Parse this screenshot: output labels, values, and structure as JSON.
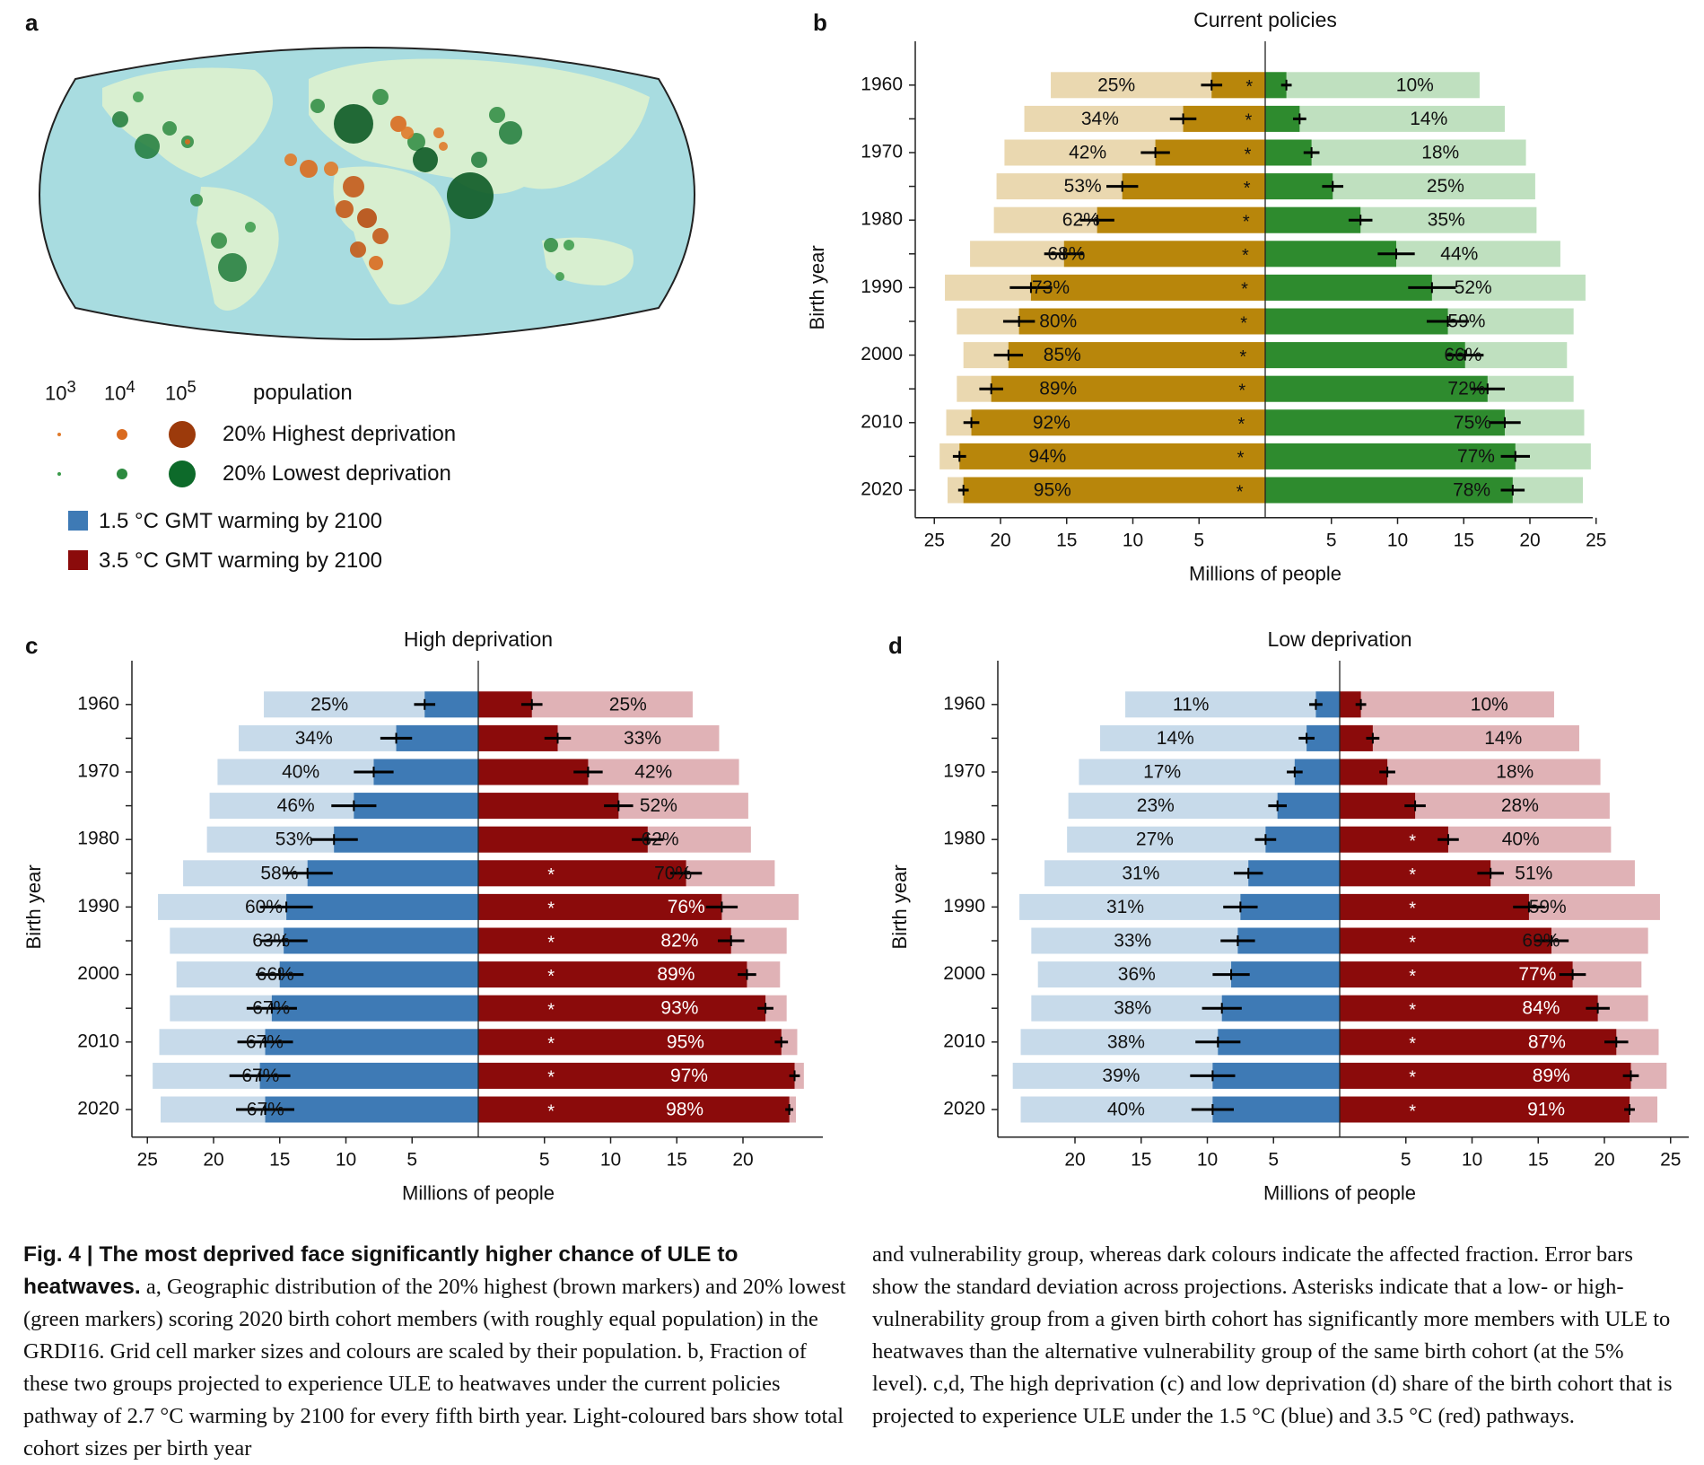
{
  "panels": {
    "a": {
      "letter": "a"
    },
    "b": {
      "letter": "b"
    },
    "c": {
      "letter": "c"
    },
    "d": {
      "letter": "d"
    }
  },
  "legend": {
    "size_labels": [
      "10^3",
      "10^4",
      "10^5"
    ],
    "population_label": "population",
    "high_dep": "20% Highest deprivation",
    "low_dep": "20% Lowest deprivation",
    "warm15": "1.5 °C GMT warming by 2100",
    "warm35": "3.5 °C GMT warming by 2100",
    "colors": {
      "high": "#c45a1a",
      "low": "#1f7a3a",
      "blue": "#3e7ab5",
      "red": "#8b0b0b"
    }
  },
  "caption": {
    "left_title": "Fig. 4 | The most deprived face significantly higher chance of ULE to heatwaves.",
    "left_body": " a, Geographic distribution of the 20% highest (brown markers) and 20% lowest (green markers) scoring 2020 birth cohort members (with roughly equal population) in the GRDI16. Grid cell marker sizes and colours are scaled by their population. b, Fraction of these two groups projected to experience ULE to heatwaves under the current policies pathway of 2.7 °C warming by 2100 for every fifth birth year. Light-coloured bars show total cohort sizes per birth year",
    "right_body": "and vulnerability group, whereas dark colours indicate the affected fraction. Error bars show the standard deviation across projections. Asterisks indicate that a low- or high-vulnerability group from a given birth cohort has significantly more members with ULE to heatwaves than the alternative vulnerability group of the same birth cohort (at the 5% level). c,d, The high deprivation (c) and low deprivation (d) share of the birth cohort that is projected to experience ULE under the 1.5 °C (blue) and 3.5 °C (red) pathways."
  },
  "chart_data": [
    {
      "panel": "b",
      "type": "bar",
      "title": "Current policies",
      "ylabel": "Birth year",
      "xlabel": "Millions of people",
      "years": [
        1960,
        1965,
        1970,
        1975,
        1980,
        1985,
        1990,
        1995,
        2000,
        2005,
        2010,
        2015,
        2020
      ],
      "ytick_labels": [
        "1960",
        "1970",
        "1980",
        "1990",
        "2000",
        "2010",
        "2020"
      ],
      "xticks_left": [
        25,
        20,
        15,
        10,
        5
      ],
      "xticks_right": [
        5,
        10,
        15,
        20,
        25
      ],
      "left": {
        "name": "20% Highest deprivation",
        "total": [
          16.2,
          18.2,
          19.7,
          20.3,
          20.5,
          22.3,
          24.2,
          23.3,
          22.8,
          23.3,
          24.1,
          24.6,
          24.0
        ],
        "affected": [
          4.05,
          6.2,
          8.3,
          10.8,
          12.7,
          15.2,
          17.7,
          18.6,
          19.4,
          20.7,
          22.2,
          23.1,
          22.8
        ],
        "pct": [
          "25%",
          "34%",
          "42%",
          "53%",
          "62%",
          "68%",
          "73%",
          "80%",
          "85%",
          "89%",
          "92%",
          "94%",
          "95%"
        ],
        "err": [
          0.8,
          1.0,
          1.1,
          1.2,
          1.3,
          1.5,
          1.6,
          1.2,
          1.1,
          0.9,
          0.6,
          0.5,
          0.4
        ],
        "sig": [
          true,
          true,
          true,
          true,
          true,
          true,
          true,
          true,
          true,
          true,
          true,
          true,
          true
        ]
      },
      "right": {
        "name": "20% Lowest deprivation",
        "total": [
          16.2,
          18.1,
          19.7,
          20.4,
          20.5,
          22.3,
          24.2,
          23.3,
          22.8,
          23.3,
          24.1,
          24.6,
          24.0
        ],
        "affected": [
          1.6,
          2.6,
          3.5,
          5.1,
          7.2,
          9.9,
          12.6,
          13.8,
          15.1,
          16.8,
          18.1,
          18.9,
          18.7
        ],
        "pct": [
          "10%",
          "14%",
          "18%",
          "25%",
          "35%",
          "44%",
          "52%",
          "59%",
          "66%",
          "72%",
          "75%",
          "77%",
          "78%"
        ],
        "err": [
          0.4,
          0.5,
          0.6,
          0.8,
          0.9,
          1.4,
          1.8,
          1.6,
          1.4,
          1.3,
          1.2,
          1.1,
          0.9
        ],
        "sig": [
          false,
          false,
          false,
          false,
          false,
          false,
          false,
          false,
          false,
          false,
          false,
          false,
          false
        ]
      },
      "colors": {
        "left_light": "#ead8b0",
        "left_dark": "#b8860b",
        "right_light": "#bfe0bf",
        "right_dark": "#2e8b2e"
      }
    },
    {
      "panel": "c",
      "type": "bar",
      "title": "High deprivation",
      "ylabel": "Birth year",
      "xlabel": "Millions of people",
      "years": [
        1960,
        1965,
        1970,
        1975,
        1980,
        1985,
        1990,
        1995,
        2000,
        2005,
        2010,
        2015,
        2020
      ],
      "ytick_labels": [
        "1960",
        "1970",
        "1980",
        "1990",
        "2000",
        "2010",
        "2020"
      ],
      "xticks_left": [
        25,
        20,
        15,
        10,
        5
      ],
      "xticks_right": [
        5,
        10,
        15,
        20
      ],
      "left": {
        "name": "1.5 °C GMT warming by 2100",
        "total": [
          16.2,
          18.1,
          19.7,
          20.3,
          20.5,
          22.3,
          24.2,
          23.3,
          22.8,
          23.3,
          24.1,
          24.6,
          24.0
        ],
        "affected": [
          4.05,
          6.2,
          7.9,
          9.4,
          10.9,
          12.9,
          14.5,
          14.7,
          15.0,
          15.6,
          16.1,
          16.5,
          16.1
        ],
        "pct": [
          "25%",
          "34%",
          "40%",
          "46%",
          "53%",
          "58%",
          "60%",
          "63%",
          "66%",
          "67%",
          "67%",
          "67%",
          "67%"
        ],
        "err": [
          0.8,
          1.2,
          1.5,
          1.7,
          1.8,
          1.9,
          2.0,
          1.8,
          1.8,
          1.9,
          2.1,
          2.3,
          2.2
        ],
        "sig": [
          false,
          false,
          false,
          false,
          false,
          false,
          false,
          false,
          false,
          false,
          false,
          false,
          false
        ]
      },
      "right": {
        "name": "3.5 °C GMT warming by 2100",
        "total": [
          16.2,
          18.2,
          19.7,
          20.4,
          20.6,
          22.4,
          24.2,
          23.3,
          22.8,
          23.3,
          24.1,
          24.6,
          24.0
        ],
        "affected": [
          4.05,
          6.0,
          8.3,
          10.6,
          12.8,
          15.7,
          18.4,
          19.1,
          20.3,
          21.7,
          22.9,
          23.9,
          23.5
        ],
        "pct": [
          "25%",
          "33%",
          "42%",
          "52%",
          "62%",
          "70%",
          "76%",
          "82%",
          "89%",
          "93%",
          "95%",
          "97%",
          "98%"
        ],
        "err": [
          0.8,
          1.0,
          1.1,
          1.1,
          1.2,
          1.2,
          1.2,
          1.0,
          0.7,
          0.6,
          0.5,
          0.4,
          0.3
        ],
        "sig": [
          false,
          false,
          false,
          false,
          false,
          true,
          true,
          true,
          true,
          true,
          true,
          true,
          true
        ]
      },
      "colors": {
        "left_light": "#c7daea",
        "left_dark": "#3e7ab5",
        "right_light": "#e0b2b6",
        "right_dark": "#8b0b0b"
      }
    },
    {
      "panel": "d",
      "type": "bar",
      "title": "Low deprivation",
      "ylabel": "Birth year",
      "xlabel": "Millions of people",
      "years": [
        1960,
        1965,
        1970,
        1975,
        1980,
        1985,
        1990,
        1995,
        2000,
        2005,
        2010,
        2015,
        2020
      ],
      "ytick_labels": [
        "1960",
        "1970",
        "1980",
        "1990",
        "2000",
        "2010",
        "2020"
      ],
      "xticks_left": [
        20,
        15,
        10,
        5
      ],
      "xticks_right": [
        5,
        10,
        15,
        20,
        25
      ],
      "left": {
        "name": "1.5 °C GMT warming by 2100",
        "total": [
          16.2,
          18.1,
          19.7,
          20.5,
          20.6,
          22.3,
          24.2,
          23.3,
          22.8,
          23.3,
          24.1,
          24.7,
          24.1
        ],
        "affected": [
          1.8,
          2.5,
          3.4,
          4.7,
          5.6,
          6.9,
          7.5,
          7.7,
          8.2,
          8.9,
          9.2,
          9.6,
          9.6
        ],
        "pct": [
          "11%",
          "14%",
          "17%",
          "23%",
          "27%",
          "31%",
          "31%",
          "33%",
          "36%",
          "38%",
          "38%",
          "39%",
          "40%"
        ],
        "err": [
          0.5,
          0.6,
          0.6,
          0.7,
          0.8,
          1.1,
          1.3,
          1.3,
          1.4,
          1.5,
          1.7,
          1.7,
          1.6
        ],
        "sig": [
          false,
          false,
          false,
          false,
          false,
          false,
          false,
          false,
          false,
          false,
          false,
          false,
          false
        ]
      },
      "right": {
        "name": "3.5 °C GMT warming by 2100",
        "total": [
          16.2,
          18.1,
          19.7,
          20.4,
          20.5,
          22.3,
          24.2,
          23.3,
          22.8,
          23.3,
          24.1,
          24.7,
          24.0
        ],
        "affected": [
          1.6,
          2.5,
          3.6,
          5.7,
          8.2,
          11.4,
          14.3,
          16.0,
          17.6,
          19.5,
          20.9,
          22.0,
          21.9
        ],
        "pct": [
          "10%",
          "14%",
          "18%",
          "28%",
          "40%",
          "51%",
          "59%",
          "69%",
          "77%",
          "84%",
          "87%",
          "89%",
          "91%"
        ],
        "err": [
          0.4,
          0.5,
          0.6,
          0.8,
          0.8,
          1.0,
          1.2,
          1.3,
          1.0,
          0.9,
          0.9,
          0.6,
          0.4
        ],
        "sig": [
          false,
          false,
          false,
          false,
          true,
          true,
          true,
          true,
          true,
          true,
          true,
          true,
          true
        ]
      },
      "colors": {
        "left_light": "#c7daea",
        "left_dark": "#3e7ab5",
        "right_light": "#e0b2b6",
        "right_dark": "#8b0b0b"
      }
    }
  ]
}
